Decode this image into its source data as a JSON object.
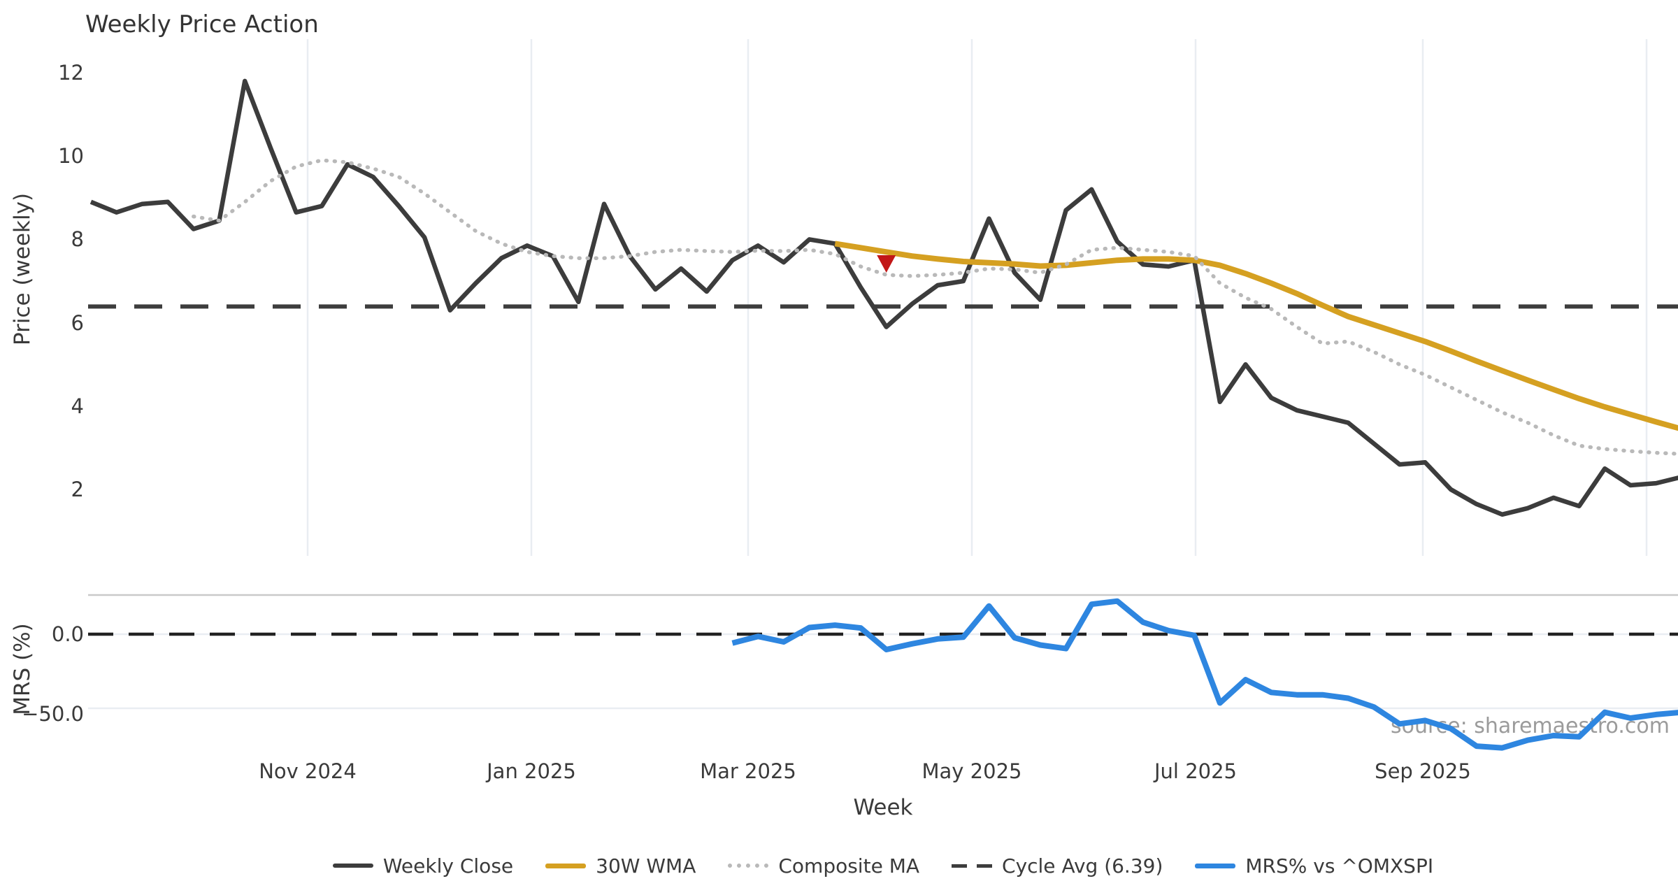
{
  "page": {
    "title": "Weekly Price Action",
    "source_watermark": "source: sharemaestro.com"
  },
  "axes": {
    "xlabel": "Week",
    "ylabel_price": "Price (weekly)",
    "ylabel_mrs": "MRS (%)",
    "price_tick_labels": [
      "12",
      "10",
      "8",
      "6",
      "4",
      "2"
    ],
    "mrs_tick_labels": [
      "0.0",
      "−50.0"
    ],
    "x_tick_labels": [
      "Nov 2024",
      "Jan 2025",
      "Mar 2025",
      "May 2025",
      "Jul 2025",
      "Sep 2025"
    ]
  },
  "legend": {
    "items": [
      {
        "label": "Weekly Close",
        "swatch": "solid-dark"
      },
      {
        "label": "30W WMA",
        "swatch": "solid-gold"
      },
      {
        "label": "Composite MA",
        "swatch": "dotted-gray"
      },
      {
        "label": "Cycle Avg (6.39)",
        "swatch": "dashed-dark"
      },
      {
        "label": "MRS% vs ^OMXSPI",
        "swatch": "solid-blue"
      }
    ]
  },
  "colors": {
    "weekly_close": "#3c3c3c",
    "wma_30w": "#d5a021",
    "composite_ma": "#b9b9b9",
    "cycle_avg_dash": "#3d3d3d",
    "mrs_line": "#2e86e0",
    "sell_marker": "#c21717",
    "gridline": "#e9edf2",
    "panel_border": "#c9c9c9",
    "watermark": "#9b9b9b"
  },
  "chart_data": {
    "type": "line",
    "title": "Weekly Price Action",
    "xlabel": "Week",
    "ylabel_top": "Price (weekly)",
    "ylabel_bottom": "MRS (%)",
    "x_tick_labels": [
      "Nov 2024",
      "Jan 2025",
      "Mar 2025",
      "May 2025",
      "Jul 2025",
      "Sep 2025"
    ],
    "x_span_weeks": [
      0,
      62
    ],
    "price_axis": {
      "ticks": [
        12,
        10,
        8,
        6,
        4,
        2
      ],
      "range": [
        1.0,
        12.6
      ],
      "grid": "vertical-only"
    },
    "mrs_axis": {
      "ticks": [
        0.0,
        -50.0
      ],
      "range": [
        -85,
        32
      ],
      "grid": "horizontal-only"
    },
    "cycle_avg": 6.39,
    "legend_position": "bottom-center",
    "series": [
      {
        "name": "Weekly Close",
        "panel": "price",
        "style": "solid",
        "color": "#3c3c3c",
        "start_week": 0,
        "values": [
          8.9,
          8.65,
          8.85,
          8.9,
          8.25,
          8.45,
          11.8,
          10.2,
          8.65,
          8.8,
          9.8,
          9.5,
          8.8,
          8.05,
          6.3,
          6.95,
          7.55,
          7.85,
          7.6,
          6.5,
          8.85,
          7.6,
          6.8,
          7.3,
          6.75,
          7.5,
          7.85,
          7.45,
          8.0,
          7.9,
          6.85,
          5.9,
          6.45,
          6.9,
          7.0,
          8.5,
          7.2,
          6.55,
          8.7,
          9.2,
          7.95,
          7.4,
          7.35,
          7.5,
          4.1,
          5.0,
          4.2,
          3.9,
          3.75,
          3.6,
          3.1,
          2.6,
          2.65,
          2.0,
          1.65,
          1.4,
          1.55,
          1.8,
          1.6,
          2.5,
          2.1,
          2.15,
          2.3
        ]
      },
      {
        "name": "30W WMA",
        "panel": "price",
        "style": "solid",
        "color": "#d5a021",
        "start_week": 29,
        "values": [
          7.9,
          7.8,
          7.7,
          7.6,
          7.53,
          7.47,
          7.44,
          7.41,
          7.36,
          7.38,
          7.44,
          7.5,
          7.53,
          7.53,
          7.5,
          7.38,
          7.18,
          6.95,
          6.7,
          6.42,
          6.15,
          5.95,
          5.75,
          5.55,
          5.32,
          5.08,
          4.85,
          4.62,
          4.4,
          4.18,
          3.98,
          3.8,
          3.62,
          3.45
        ]
      },
      {
        "name": "Composite MA",
        "panel": "price",
        "style": "dotted",
        "color": "#b9b9b9",
        "start_week": 4,
        "values": [
          8.55,
          8.45,
          8.9,
          9.4,
          9.75,
          9.9,
          9.85,
          9.7,
          9.5,
          9.1,
          8.65,
          8.2,
          7.9,
          7.7,
          7.6,
          7.55,
          7.55,
          7.6,
          7.7,
          7.75,
          7.72,
          7.7,
          7.73,
          7.72,
          7.75,
          7.65,
          7.35,
          7.15,
          7.12,
          7.15,
          7.2,
          7.3,
          7.28,
          7.2,
          7.4,
          7.75,
          7.8,
          7.75,
          7.7,
          7.6,
          6.95,
          6.6,
          6.33,
          5.9,
          5.5,
          5.55,
          5.3,
          5.0,
          4.75,
          4.45,
          4.15,
          3.85,
          3.6,
          3.3,
          3.05,
          2.97,
          2.92,
          2.88,
          2.85
        ]
      },
      {
        "name": "Cycle Avg (6.39)",
        "panel": "price",
        "style": "dashed",
        "color": "#3d3d3d",
        "value": 6.39
      },
      {
        "name": "MRS% vs ^OMXSPI",
        "panel": "mrs",
        "style": "solid",
        "color": "#2e86e0",
        "start_week": 25,
        "zero_dash_line": true,
        "values": [
          -6.0,
          -1.5,
          -5.2,
          4.5,
          6.1,
          4.2,
          -10.4,
          -6.5,
          -3.2,
          -2.0,
          19.0,
          -2.4,
          -7.3,
          -9.7,
          20.2,
          22.3,
          8.1,
          2.4,
          -0.8,
          -46.4,
          -30.7,
          -39.3,
          -40.9,
          -40.9,
          -43.2,
          -49.1,
          -60.5,
          -58.2,
          -63.7,
          -75.5,
          -76.7,
          -71.5,
          -68.4,
          -69.2,
          -52.7,
          -56.6,
          -54.2,
          -52.7
        ]
      }
    ],
    "sell_marker": {
      "week": 31,
      "price": 7.42,
      "shape": "triangle-down",
      "color": "#c21717"
    }
  }
}
